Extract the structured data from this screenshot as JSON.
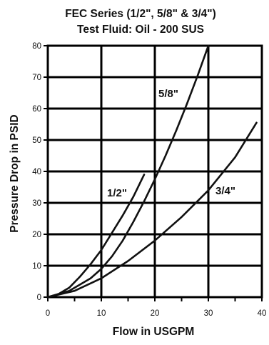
{
  "chart_data": {
    "type": "line",
    "title": "FEC Series (1/2\", 5/8\" & 3/4\")",
    "subtitle": "Test Fluid: Oil - 200 SUS",
    "xlabel": "Flow in USGPM",
    "ylabel": "Pressure Drop in PSID",
    "xlim": [
      0,
      40
    ],
    "ylim": [
      0,
      80
    ],
    "xticks": [
      "0",
      "10",
      "20",
      "30",
      "40"
    ],
    "yticks": [
      "0",
      "10",
      "20",
      "30",
      "40",
      "50",
      "60",
      "70",
      "80"
    ],
    "grid": true,
    "legend": "none",
    "series": [
      {
        "name": "1/2\"",
        "color": "#111111",
        "x": [
          0,
          2,
          4,
          6,
          8,
          10,
          12,
          14,
          16,
          18
        ],
        "y": [
          0,
          1,
          3,
          6.5,
          10.5,
          15,
          20.5,
          26,
          32,
          39
        ]
      },
      {
        "name": "5/8\"",
        "color": "#111111",
        "x": [
          0,
          4,
          8,
          10,
          12,
          14,
          16,
          18,
          20,
          22,
          24,
          26,
          28,
          30
        ],
        "y": [
          0,
          2,
          6,
          9,
          13,
          18,
          24,
          30.5,
          37.5,
          45,
          53,
          61.5,
          70.5,
          80
        ]
      },
      {
        "name": "3/4\"",
        "color": "#111111",
        "x": [
          0,
          5,
          10,
          15,
          20,
          25,
          30,
          35,
          39
        ],
        "y": [
          0,
          2,
          6,
          11.5,
          18,
          25.5,
          34,
          44.5,
          55.5
        ]
      }
    ]
  }
}
